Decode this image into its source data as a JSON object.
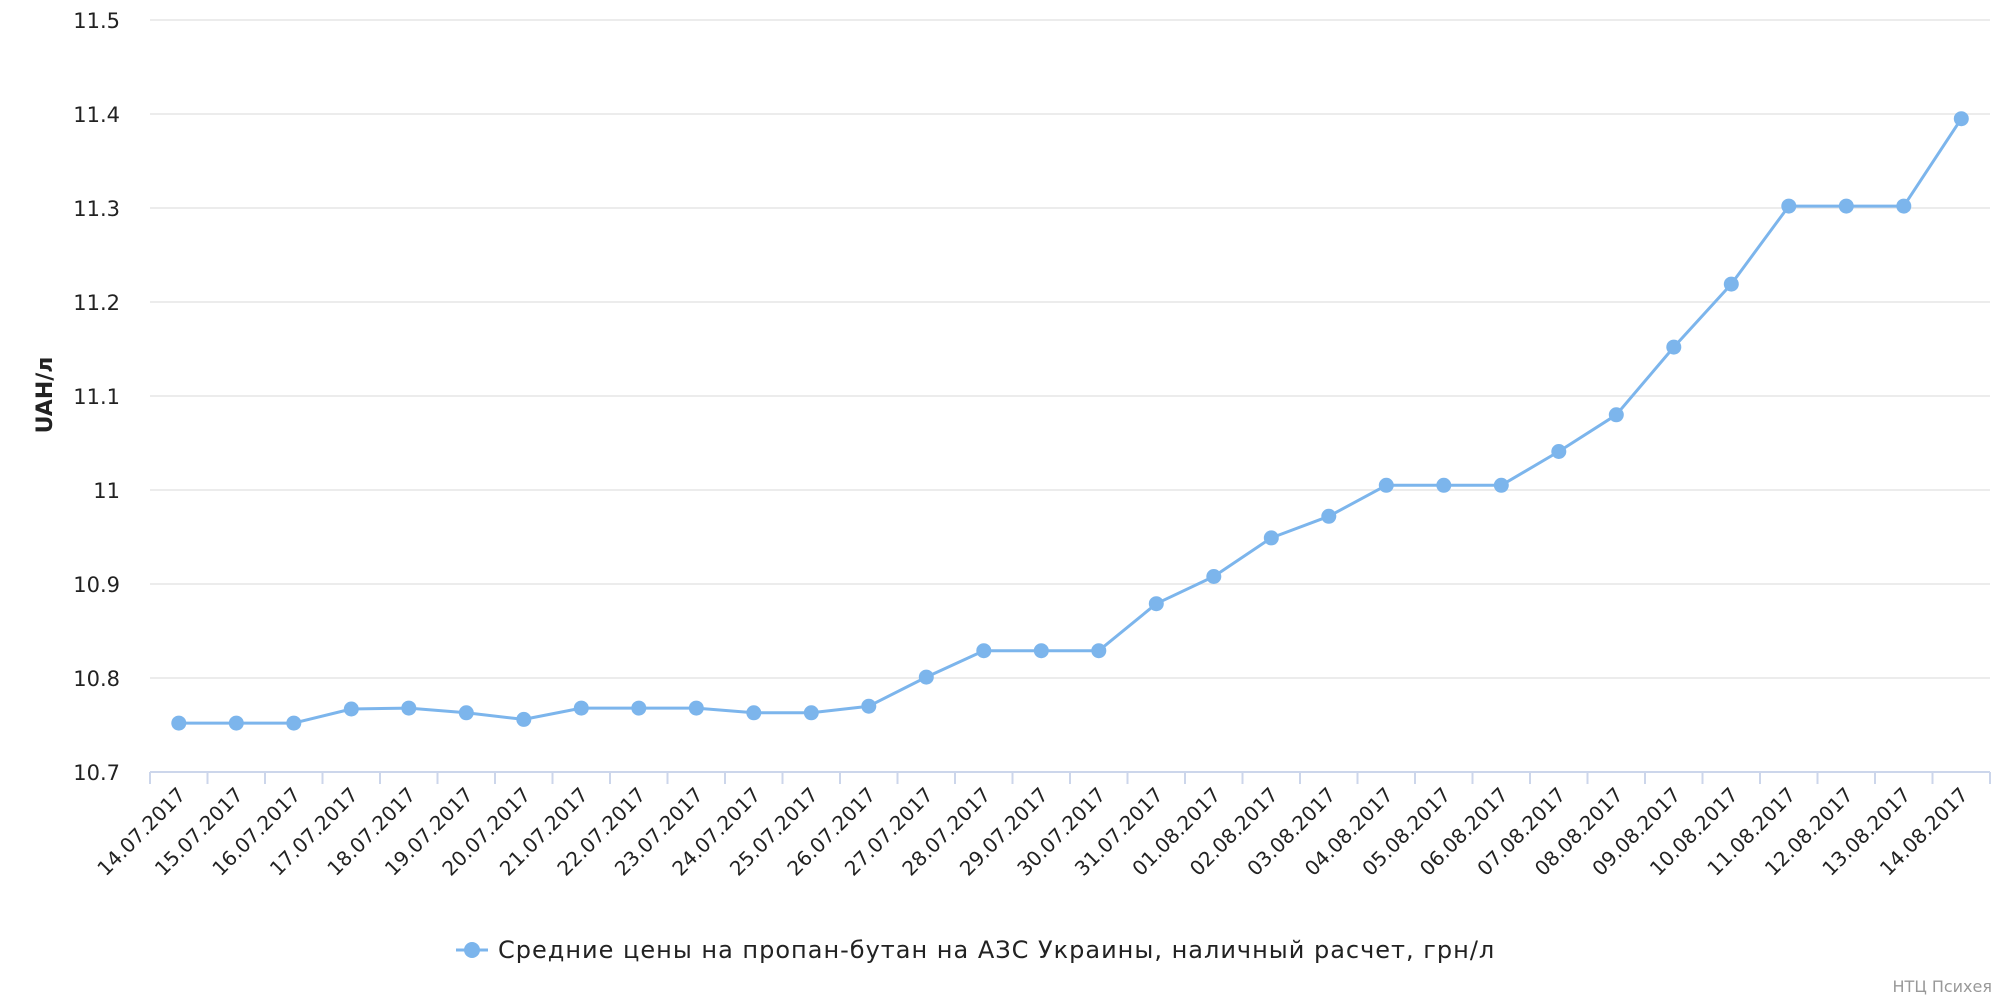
{
  "colors": {
    "series": "#7cb5ec",
    "grid": "#e6e6e6",
    "axis": "#ccd6eb",
    "text": "#222222",
    "credit": "#999999"
  },
  "credit": "НТЦ Психея",
  "chart_data": {
    "type": "line",
    "ylabel": "UAH/л",
    "xlabel": "",
    "ylim": [
      10.7,
      11.5
    ],
    "yticks": [
      10.7,
      10.8,
      10.9,
      11,
      11.1,
      11.2,
      11.3,
      11.4,
      11.5
    ],
    "ytick_labels": [
      "10.7",
      "10.8",
      "10.9",
      "11",
      "11.1",
      "11.2",
      "11.3",
      "11.4",
      "11.5"
    ],
    "grid": true,
    "legend_position": "bottom-center",
    "categories": [
      "14.07.2017",
      "15.07.2017",
      "16.07.2017",
      "17.07.2017",
      "18.07.2017",
      "19.07.2017",
      "20.07.2017",
      "21.07.2017",
      "22.07.2017",
      "23.07.2017",
      "24.07.2017",
      "25.07.2017",
      "26.07.2017",
      "27.07.2017",
      "28.07.2017",
      "29.07.2017",
      "30.07.2017",
      "31.07.2017",
      "01.08.2017",
      "02.08.2017",
      "03.08.2017",
      "04.08.2017",
      "05.08.2017",
      "06.08.2017",
      "07.08.2017",
      "08.08.2017",
      "09.08.2017",
      "10.08.2017",
      "11.08.2017",
      "12.08.2017",
      "13.08.2017",
      "14.08.2017"
    ],
    "series": [
      {
        "name": "Средние цены на пропан-бутан на АЗС Украины, наличный расчет, грн/л",
        "values": [
          10.752,
          10.752,
          10.752,
          10.767,
          10.768,
          10.763,
          10.756,
          10.768,
          10.768,
          10.768,
          10.763,
          10.763,
          10.77,
          10.801,
          10.829,
          10.829,
          10.829,
          10.879,
          10.908,
          10.949,
          10.972,
          11.005,
          11.005,
          11.005,
          11.041,
          11.08,
          11.152,
          11.219,
          11.302,
          11.302,
          11.302,
          11.395
        ]
      }
    ]
  }
}
